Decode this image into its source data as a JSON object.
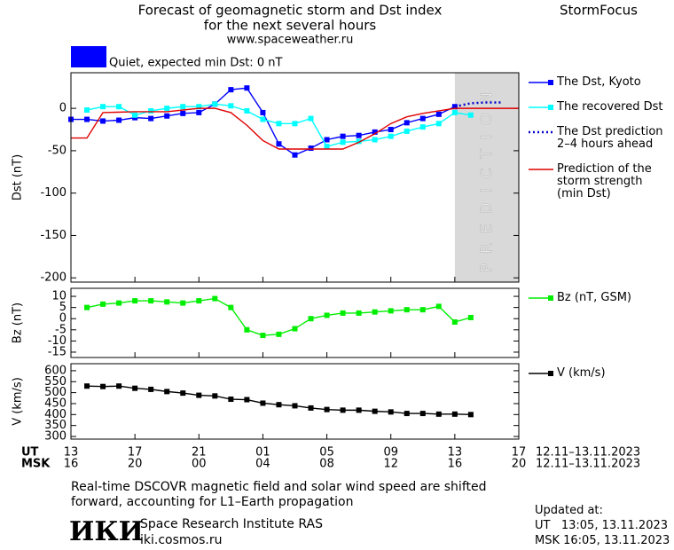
{
  "header": {
    "title": "Forecast of geomagnetic storm and Dst index",
    "subtitle": "for the next several hours",
    "url": "www.spaceweather.ru",
    "brand": "StormFocus"
  },
  "status": {
    "label": "Quiet, expected min Dst: 0 nT",
    "color": "#0000ff"
  },
  "chart_data": [
    {
      "type": "line",
      "ylabel": "Dst (nT)",
      "xlim": [
        0,
        28
      ],
      "ylim": [
        -205,
        42
      ],
      "yticks": [
        0,
        -50,
        -100,
        -150,
        -200
      ],
      "prediction_zone": {
        "label": "PREDICTION",
        "x": [
          24,
          28
        ],
        "color": "#d9d9d9"
      },
      "series": [
        {
          "name": "The Dst, Kyoto",
          "color": "#0000ff",
          "marker": "square",
          "dash": "solid",
          "x": [
            0,
            1,
            2,
            3,
            4,
            5,
            6,
            7,
            8,
            9,
            10,
            11,
            12,
            13,
            14,
            15,
            16,
            17,
            18,
            19,
            20,
            21,
            22,
            23,
            24
          ],
          "values": [
            -13,
            -13,
            -15,
            -14,
            -11,
            -12,
            -9,
            -6,
            -5,
            5,
            22,
            24,
            -5,
            -42,
            -55,
            -47,
            -37,
            -33,
            -32,
            -28,
            -25,
            -17,
            -12,
            -7,
            2
          ]
        },
        {
          "name": "The recovered Dst",
          "color": "#00ffff",
          "marker": "square",
          "dash": "solid",
          "x": [
            1,
            2,
            3,
            4,
            5,
            6,
            7,
            8,
            9,
            10,
            11,
            12,
            13,
            14,
            15,
            16,
            17,
            18,
            19,
            20,
            21,
            22,
            23,
            24,
            25
          ],
          "values": [
            -2,
            2,
            2,
            -8,
            -3,
            0,
            2,
            2,
            5,
            3,
            -3,
            -13,
            -18,
            -18,
            -12,
            -45,
            -40,
            -39,
            -37,
            -33,
            -27,
            -22,
            -18,
            -5,
            -8
          ]
        },
        {
          "name": "The Dst prediction\n2–4 hours ahead",
          "color": "#0000cc",
          "marker": "none",
          "dash": "dotted",
          "x": [
            24,
            25,
            26,
            27
          ],
          "values": [
            2,
            6,
            7,
            7
          ]
        },
        {
          "name": "Prediction of the\nstorm strength\n(min Dst)",
          "color": "#e00000",
          "marker": "none",
          "dash": "solid",
          "x": [
            0,
            1,
            2,
            4,
            6,
            8,
            9,
            10,
            11,
            12,
            13,
            17,
            18,
            19,
            20,
            21,
            22,
            23,
            24,
            28
          ],
          "values": [
            -35,
            -35,
            -5,
            -4,
            -4,
            0,
            0,
            -5,
            -20,
            -38,
            -48,
            -48,
            -40,
            -30,
            -18,
            -10,
            -6,
            -3,
            0,
            0
          ]
        }
      ]
    },
    {
      "type": "line",
      "ylabel": "Bz (nT)",
      "xlim": [
        0,
        28
      ],
      "ylim": [
        -17.4,
        13.6
      ],
      "yticks": [
        10,
        5,
        0,
        -5,
        -10,
        -15
      ],
      "series": [
        {
          "name": "Bz (nT, GSM)",
          "color": "#00ee00",
          "marker": "square",
          "dash": "solid",
          "x": [
            1,
            2,
            3,
            4,
            5,
            6,
            7,
            8,
            9,
            10,
            11,
            12,
            13,
            14,
            15,
            16,
            17,
            18,
            19,
            20,
            21,
            22,
            23,
            24,
            25
          ],
          "values": [
            5,
            6.5,
            7,
            8,
            8,
            7.5,
            7,
            8,
            9,
            5,
            -5,
            -7.5,
            -7,
            -4.5,
            0,
            1.5,
            2.5,
            2.5,
            3,
            3.5,
            4,
            4,
            5.5,
            -1.5,
            0.5
          ]
        }
      ]
    },
    {
      "type": "line",
      "ylabel": "V (km/s)",
      "xlim": [
        0,
        28
      ],
      "ylim": [
        288,
        632
      ],
      "yticks": [
        600,
        550,
        500,
        450,
        400,
        350,
        300
      ],
      "xticks": [
        {
          "value": 0,
          "label": "13"
        },
        {
          "value": 4,
          "label": "17"
        },
        {
          "value": 8,
          "label": "21"
        },
        {
          "value": 12,
          "label": "01"
        },
        {
          "value": 16,
          "label": "05"
        },
        {
          "value": 20,
          "label": "09"
        },
        {
          "value": 24,
          "label": "13"
        },
        {
          "value": 28,
          "label": "17"
        }
      ],
      "xticks_msk": [
        "16",
        "20",
        "00",
        "04",
        "08",
        "12",
        "16",
        "20"
      ],
      "xaxis_names": [
        "UT",
        "MSK"
      ],
      "date_range_ut": "12.11–13.11.2023",
      "date_range_msk": "12.11–13.11.2023",
      "series": [
        {
          "name": "V (km/s)",
          "color": "#000000",
          "marker": "square",
          "dash": "solid",
          "x": [
            1,
            2,
            3,
            4,
            5,
            6,
            7,
            8,
            9,
            10,
            11,
            12,
            13,
            14,
            15,
            16,
            17,
            18,
            19,
            20,
            21,
            22,
            23,
            24,
            25
          ],
          "values": [
            530,
            528,
            530,
            520,
            515,
            505,
            498,
            488,
            485,
            470,
            468,
            452,
            445,
            440,
            430,
            423,
            420,
            420,
            415,
            412,
            405,
            405,
            402,
            402,
            400
          ]
        }
      ]
    }
  ],
  "footer": {
    "note": "Real-time DSCOVR magnetic field and solar wind speed are shifted\nforward, accounting for L1–Earth propagation",
    "logo": "ИКИ",
    "institute": "Space Research Institute RAS",
    "site": "iki.cosmos.ru",
    "updated_title": "Updated at:",
    "updated_ut": "UT   13:05, 13.11.2023",
    "updated_msk": "MSK 16:05, 13.11.2023"
  }
}
